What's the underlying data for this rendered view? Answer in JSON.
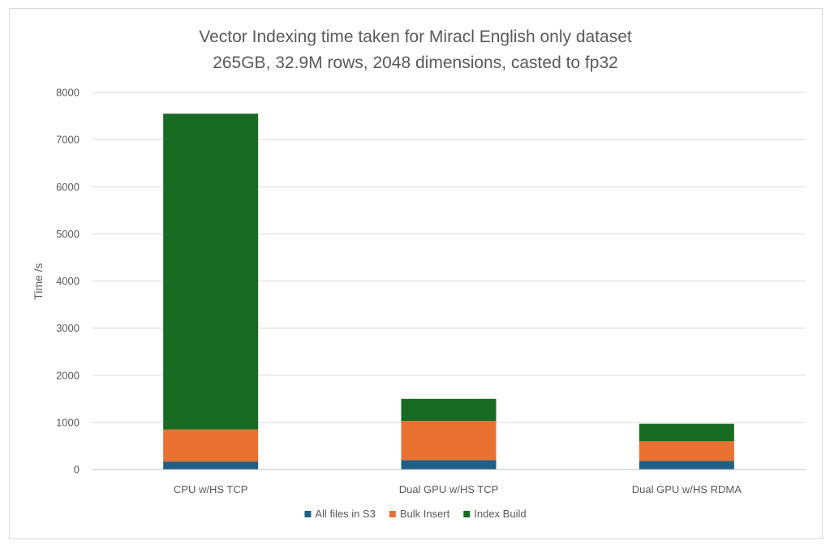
{
  "chart_data": {
    "type": "bar",
    "stacked": true,
    "title_line1": "Vector Indexing time taken for Miracl English only dataset",
    "title_line2": "265GB, 32.9M rows, 2048 dimensions, casted to fp32",
    "xlabel": "",
    "ylabel": "Time /s",
    "ylim": [
      0,
      8000
    ],
    "yticks": [
      0,
      1000,
      2000,
      3000,
      4000,
      5000,
      6000,
      7000,
      8000
    ],
    "grid": true,
    "legend_position": "bottom",
    "categories": [
      "CPU w/HS TCP",
      "Dual GPU w/HS TCP",
      "Dual GPU w/HS RDMA"
    ],
    "series": [
      {
        "name": "All files in S3",
        "color": "#1f5f86",
        "values": [
          170,
          200,
          180
        ]
      },
      {
        "name": "Bulk Insert",
        "color": "#e97132",
        "values": [
          680,
          830,
          420
        ]
      },
      {
        "name": "Index Build",
        "color": "#196b24",
        "values": [
          6700,
          470,
          370
        ]
      }
    ]
  }
}
